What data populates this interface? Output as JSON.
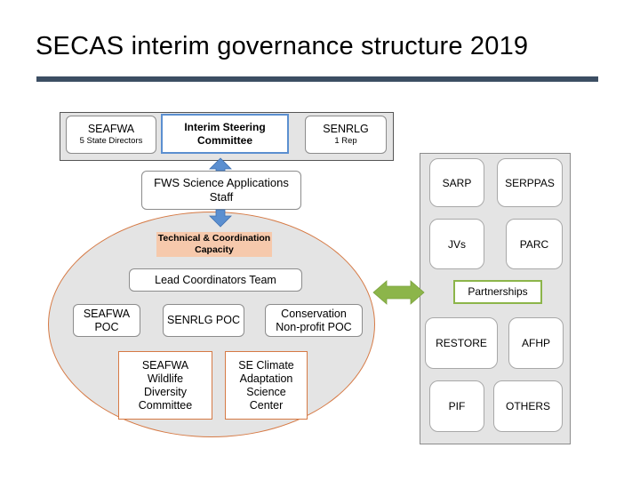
{
  "slide": {
    "title": "SECAS interim governance structure 2019",
    "colors": {
      "title_bar": "#3c4e63",
      "arrow_blue": "#5b8fd0",
      "arrow_green": "#8cb54a",
      "ellipse_border": "#d67a45",
      "panel_gray": "#e4e4e4"
    }
  },
  "top_row": {
    "seafwa": {
      "title": "SEAFWA",
      "subtitle": "5 State Directors"
    },
    "steering": {
      "line1": "Interim Steering",
      "line2": "Committee"
    },
    "senrlg": {
      "title": "SENRLG",
      "subtitle": "1 Rep"
    }
  },
  "fws": {
    "line1": "FWS Science Applications",
    "line2": "Staff"
  },
  "technical": {
    "line1": "Technical & Coordination",
    "line2": "Capacity"
  },
  "lead_coordinators": "Lead Coordinators Team",
  "pocs": {
    "seafwa": {
      "line1": "SEAFWA",
      "line2": "POC"
    },
    "senrlg": "SENRLG POC",
    "conservation": {
      "line1": "Conservation",
      "line2": "Non-profit POC"
    }
  },
  "committees": {
    "wildlife": [
      "SEAFWA",
      "Wildlife",
      "Diversity",
      "Committee"
    ],
    "climate": [
      "SE Climate",
      "Adaptation",
      "Science",
      "Center"
    ]
  },
  "partnerships": {
    "label": "Partnerships",
    "items": [
      "SARP",
      "SERPPAS",
      "JVs",
      "PARC",
      "RESTORE",
      "AFHP",
      "PIF",
      "OTHERS"
    ]
  }
}
